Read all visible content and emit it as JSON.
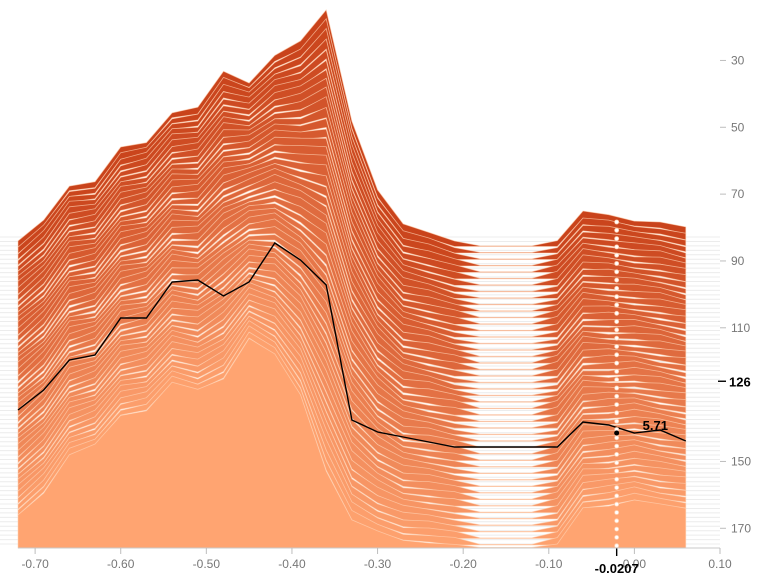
{
  "chart_data": {
    "type": "area",
    "title": "",
    "xlabel": "",
    "ylabel": "",
    "xlim": [
      -0.72,
      0.1
    ],
    "ylim": [
      17,
      175
    ],
    "grid": true,
    "x_ticks": [
      "-0.70",
      "-0.60",
      "-0.50",
      "-0.40",
      "-0.30",
      "-0.20",
      "-0.10",
      "0.00",
      "0.10"
    ],
    "y_ticks": [
      "30",
      "50",
      "70",
      "90",
      "110",
      "150",
      "170"
    ],
    "x": [
      -0.72,
      -0.69,
      -0.66,
      -0.63,
      -0.6,
      -0.57,
      -0.54,
      -0.51,
      -0.48,
      -0.45,
      -0.42,
      -0.39,
      -0.36,
      -0.33,
      -0.3,
      -0.27,
      -0.24,
      -0.21,
      -0.18,
      -0.15,
      -0.12,
      -0.09,
      -0.06,
      -0.03,
      0.0,
      0.03,
      0.06
    ],
    "series_count": 50,
    "colors": {
      "light": "#ffa471",
      "dark": "#c9431b",
      "edge": "#ffd0b0",
      "highlight": "#000000"
    },
    "highlight": {
      "series_index": 126,
      "series_label": "126",
      "x_label": "-0.0207",
      "x_value": -0.0207,
      "value_label": "5.71",
      "value": 5.71
    }
  }
}
